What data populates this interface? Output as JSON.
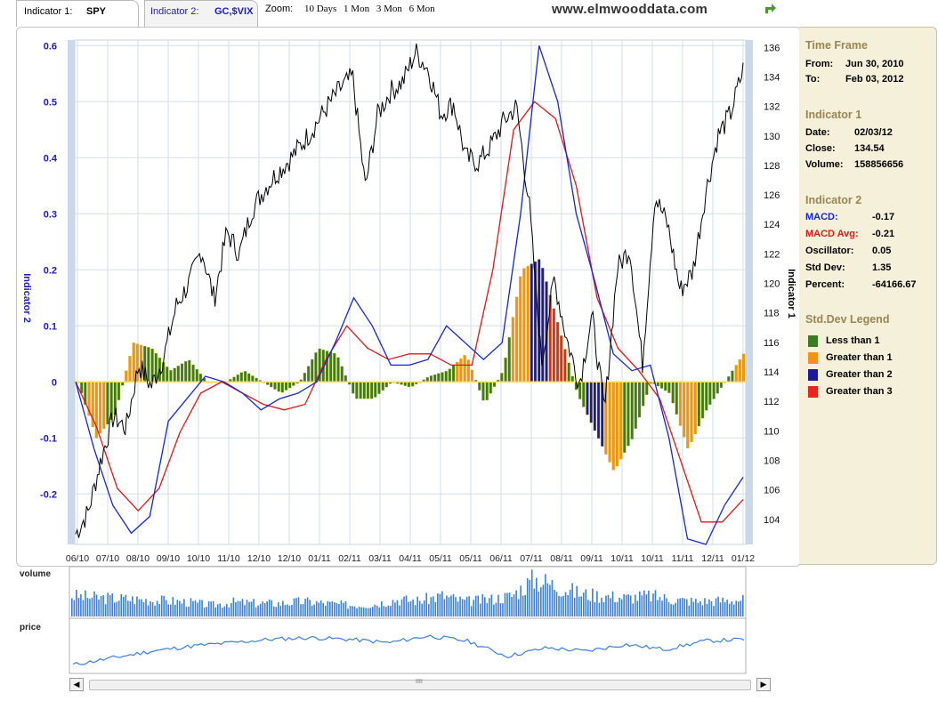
{
  "tabs": {
    "indicator1_label": "Indicator 1:",
    "indicator1_value": "SPY",
    "indicator2_label": "Indicator 2:",
    "indicator2_value": "GC,$VIX"
  },
  "zoom": {
    "label": "Zoom:",
    "options": [
      "10 Days",
      "1 Mon",
      "3 Mon",
      "6 Mon"
    ]
  },
  "site": "www.elmwooddata.com",
  "panel": {
    "timeframe_title": "Time Frame",
    "from_label": "From:",
    "from_value": "Jun 30, 2010",
    "to_label": "To:",
    "to_value": "Feb 03, 2012",
    "ind1_title": "Indicator 1",
    "date_label": "Date:",
    "date_value": "02/03/12",
    "close_label": "Close:",
    "close_value": "134.54",
    "volume_label": "Volume:",
    "volume_value": "158856656",
    "ind2_title": "Indicator 2",
    "macd_label": "MACD:",
    "macd_value": "-0.17",
    "macdavg_label": "MACD Avg:",
    "macdavg_value": "-0.21",
    "osc_label": "Oscillator:",
    "osc_value": "0.05",
    "std_label": "Std Dev:",
    "std_value": "1.35",
    "pct_label": "Percent:",
    "pct_value": "-64166.67",
    "legend_title": "Std.Dev Legend",
    "legend": [
      {
        "label": "Less than 1",
        "color": "#3d7a25"
      },
      {
        "label": "Greater than 1",
        "color": "#f0921c"
      },
      {
        "label": "Greater than 2",
        "color": "#1b1a9b"
      },
      {
        "label": "Greater than 3",
        "color": "#e8251f"
      }
    ]
  },
  "lower": {
    "volume_label": "volume",
    "price_label": "price",
    "scroll_grip": "IIII"
  },
  "colors": {
    "macd": "#1426d6",
    "macd_avg": "#e01818",
    "price": "#000000",
    "lt1": "#3d7a25",
    "gt1": "#f0921c",
    "gt2": "#1b1a9b",
    "gt3": "#e8251f",
    "blue_axis": "#1a1ad0",
    "mini": "#3a7fd8"
  },
  "chart_data": {
    "type": "line",
    "x": [
      "06/10",
      "07/10",
      "08/10",
      "09/10",
      "10/10",
      "11/10",
      "12/10",
      "12/10",
      "01/11",
      "02/11",
      "03/11",
      "04/11",
      "05/11",
      "05/11",
      "06/11",
      "07/11",
      "08/11",
      "09/11",
      "10/11",
      "10/11",
      "11/11",
      "12/11",
      "01/12"
    ],
    "y_left_label": "Indicator 2",
    "y_right_label": "Indicator 1",
    "y_left_ticks": [
      0.6,
      0.5,
      0.4,
      0.3,
      0.2,
      0.1,
      0,
      -0.1,
      -0.2
    ],
    "y_right_ticks": [
      136,
      134,
      132,
      130,
      128,
      126,
      124,
      122,
      120,
      118,
      116,
      114,
      112,
      110,
      108,
      106,
      104
    ],
    "ylim_left": [
      -0.29,
      0.61
    ],
    "ylim_right": [
      102.3,
      136.5
    ],
    "price": [
      103.0,
      104.5,
      108.0,
      111.0,
      110.2,
      114.5,
      113.0,
      115.0,
      118.5,
      120.0,
      122.3,
      118.9,
      123.5,
      122.0,
      125.0,
      126.4,
      127.5,
      128.4,
      129.5,
      130.7,
      132.0,
      133.2,
      134.0,
      126.5,
      131.5,
      133.0,
      133.7,
      135.7,
      134.5,
      131.5,
      132.2,
      128.5,
      128.2,
      129.4,
      131.0,
      132.0,
      125.5,
      114.6,
      120.3,
      116.2,
      113.2,
      117.8,
      111.3,
      121.0,
      122.4,
      114.5,
      125.9,
      124.0,
      119.5,
      120.8,
      126.0,
      130.0,
      131.5,
      134.5
    ],
    "macd": [
      0.0,
      -0.12,
      -0.22,
      -0.27,
      -0.24,
      -0.07,
      -0.03,
      0.01,
      0.0,
      -0.02,
      -0.05,
      -0.03,
      -0.02,
      0.0,
      0.07,
      0.15,
      0.1,
      0.03,
      0.03,
      0.04,
      0.1,
      0.07,
      0.04,
      0.07,
      0.3,
      0.6,
      0.5,
      0.3,
      0.18,
      0.05,
      0.02,
      0.03,
      -0.1,
      -0.28,
      -0.29,
      -0.22,
      -0.17
    ],
    "macd_avg": [
      0.0,
      -0.08,
      -0.19,
      -0.23,
      -0.19,
      -0.09,
      -0.02,
      0.0,
      -0.02,
      -0.04,
      -0.05,
      -0.04,
      0.04,
      0.1,
      0.06,
      0.04,
      0.05,
      0.05,
      0.03,
      0.03,
      0.2,
      0.45,
      0.5,
      0.47,
      0.35,
      0.15,
      0.06,
      0.02,
      -0.03,
      -0.14,
      -0.25,
      -0.25,
      -0.21
    ],
    "oscillator": [
      0.0,
      -0.1,
      -0.06,
      0.07,
      0.06,
      0.02,
      0.04,
      0.0,
      0.0,
      0.02,
      0.0,
      -0.02,
      0.0,
      0.06,
      0.05,
      -0.03,
      -0.03,
      0.0,
      -0.01,
      0.01,
      0.02,
      0.05,
      -0.04,
      0.02,
      0.2,
      0.22,
      0.1,
      -0.02,
      -0.09,
      -0.16,
      -0.1,
      0.0,
      -0.02,
      -0.12,
      -0.05,
      0.0,
      0.05
    ],
    "oscillator_band": [
      "lt1",
      "gt1",
      "lt1",
      "gt1",
      "lt1",
      "lt1",
      "lt1",
      "lt1",
      "lt1",
      "lt1",
      "lt1",
      "lt1",
      "lt1",
      "lt1",
      "lt1",
      "lt1",
      "lt1",
      "lt1",
      "lt1",
      "lt1",
      "lt1",
      "gt1",
      "lt1",
      "lt1",
      "gt1",
      "gt2",
      "gt3",
      "lt1",
      "gt2",
      "gt1",
      "lt1",
      "lt1",
      "lt1",
      "gt1",
      "lt1",
      "lt1",
      "gt1"
    ],
    "volume_relative": [
      0.55,
      0.5,
      0.48,
      0.45,
      0.42,
      0.38,
      0.3,
      0.38,
      0.35,
      0.35,
      0.4,
      0.35,
      0.3,
      0.32,
      0.45,
      0.42,
      0.55,
      0.4,
      0.45,
      0.55,
      1.0,
      0.8,
      0.6,
      0.55,
      0.5,
      0.55,
      0.45,
      0.4,
      0.42,
      0.45
    ],
    "price_mini": [
      0.1,
      0.3,
      0.5,
      0.65,
      0.75,
      0.85,
      0.9,
      0.85,
      0.75,
      0.95,
      0.8,
      0.35,
      0.6,
      0.5,
      0.7,
      0.55,
      0.8,
      0.85
    ]
  }
}
